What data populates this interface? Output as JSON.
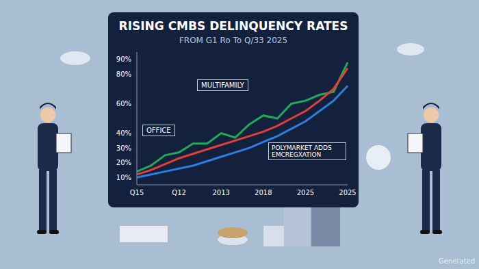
{
  "chart_data": {
    "type": "line",
    "title": "RISING CMBS DELINQUENCY RATES",
    "subtitle": "FROM G1 Ro To Q/33 2025",
    "categories": [
      "Q15",
      null,
      null,
      "Q12",
      null,
      null,
      "2013",
      null,
      null,
      "2018",
      null,
      null,
      "2025",
      null,
      null,
      "2025"
    ],
    "series": [
      {
        "color": "#22a85a",
        "values": [
          14,
          18,
          25,
          27,
          33,
          33,
          40,
          37,
          46,
          52,
          50,
          60,
          62,
          66,
          68,
          88
        ]
      },
      {
        "color": "#e0403a",
        "values": [
          12,
          15,
          19,
          23,
          26,
          29,
          32,
          35,
          38,
          41,
          45,
          50,
          55,
          62,
          70,
          84
        ]
      },
      {
        "color": "#2a7fe0",
        "values": [
          10,
          12,
          14,
          16,
          18,
          21,
          24,
          27,
          30,
          34,
          38,
          43,
          48,
          55,
          62,
          72
        ]
      }
    ],
    "ylim": [
      5,
      95
    ],
    "yticks": [
      {
        "value": 10,
        "label": "10%"
      },
      {
        "value": 20,
        "label": "20%"
      },
      {
        "value": 30,
        "label": "30%"
      },
      {
        "value": 40,
        "label": "40%"
      },
      {
        "value": 60,
        "label": "60%"
      },
      {
        "value": 80,
        "label": "80%"
      },
      {
        "value": 90,
        "label": "90%"
      }
    ],
    "grid": false,
    "annotations": [
      "OFFICE",
      "MULTIFAMILY",
      "POLYMARKET ADDS EMCREGXATION",
      "Generated"
    ]
  }
}
